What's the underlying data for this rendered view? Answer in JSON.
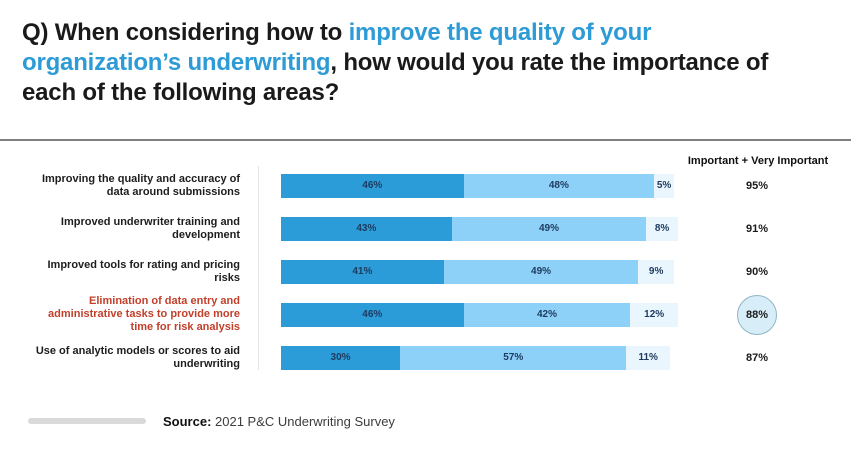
{
  "title": {
    "pre": "Q) When considering how to ",
    "highlight": "improve the quality of your organization’s underwriting",
    "post": ", how would you rate the importance of each of the following areas?"
  },
  "chart_data": {
    "type": "bar",
    "stacked": true,
    "orientation": "horizontal",
    "x_max": 100,
    "grid": false,
    "legend": "none",
    "segment_colors": [
      "#2b9cd8",
      "#8dd0f8",
      "#eaf6fd"
    ],
    "accent_blue": "#2d9bd5",
    "highlight_red": "#c2402b",
    "right_column_header": "Important + Very Important",
    "rows": [
      {
        "label": "Improving the quality and accuracy of data around submissions",
        "values": [
          46,
          48,
          5
        ],
        "labels": [
          "46%",
          "48%",
          "5%"
        ],
        "total": "95%",
        "highlighted": false
      },
      {
        "label": "Improved underwriter training and development",
        "values": [
          43,
          49,
          8
        ],
        "labels": [
          "43%",
          "49%",
          "8%"
        ],
        "total": "91%",
        "highlighted": false
      },
      {
        "label": "Improved tools for rating and pricing risks",
        "values": [
          41,
          49,
          9
        ],
        "labels": [
          "41%",
          "49%",
          "9%"
        ],
        "total": "90%",
        "highlighted": false
      },
      {
        "label": "Elimination of data entry and administrative tasks to provide more time for risk analysis",
        "values": [
          46,
          42,
          12
        ],
        "labels": [
          "46%",
          "42%",
          "12%"
        ],
        "total": "88%",
        "highlighted": true
      },
      {
        "label": "Use of analytic models or scores to aid underwriting",
        "values": [
          30,
          57,
          11
        ],
        "labels": [
          "30%",
          "57%",
          "11%"
        ],
        "total": "87%",
        "highlighted": false
      }
    ]
  },
  "source": {
    "label": "Source:",
    "text": " 2021 P&C Underwriting Survey"
  }
}
